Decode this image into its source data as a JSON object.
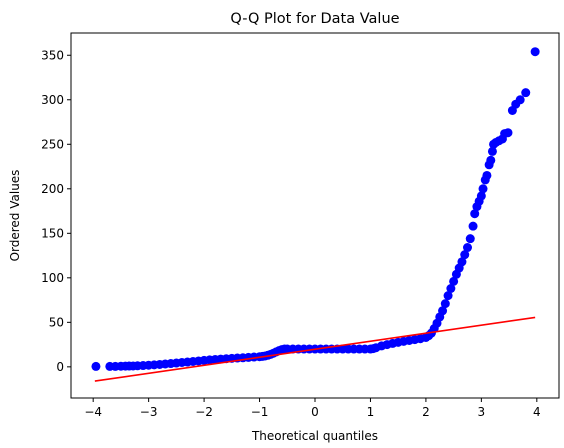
{
  "chart_data": {
    "type": "scatter",
    "title": "Q-Q Plot for Data Value",
    "xlabel": "Theoretical quantiles",
    "ylabel": "Ordered Values",
    "xlim": [
      -4.4,
      4.4
    ],
    "ylim": [
      -35,
      375
    ],
    "xticks": [
      -4,
      -3,
      -2,
      -1,
      0,
      1,
      2,
      3,
      4
    ],
    "xtick_labels": [
      "−4",
      "−3",
      "−2",
      "−1",
      "0",
      "1",
      "2",
      "3",
      "4"
    ],
    "yticks": [
      0,
      50,
      100,
      150,
      200,
      250,
      300,
      350
    ],
    "ytick_labels": [
      "0",
      "50",
      "100",
      "150",
      "200",
      "250",
      "300",
      "350"
    ],
    "grid": false,
    "series": [
      {
        "kind": "points",
        "color": "#0000ff",
        "points": [
          [
            -3.95,
            0.5
          ],
          [
            -3.7,
            0.5
          ],
          [
            -3.6,
            0.5
          ],
          [
            -3.5,
            0.7
          ],
          [
            -3.42,
            0.8
          ],
          [
            -3.35,
            0.9
          ],
          [
            -3.28,
            1.0
          ],
          [
            -3.2,
            1.2
          ],
          [
            -3.1,
            1.5
          ],
          [
            -3.0,
            1.8
          ],
          [
            -2.9,
            2.2
          ],
          [
            -2.8,
            2.7
          ],
          [
            -2.7,
            3.2
          ],
          [
            -2.6,
            3.7
          ],
          [
            -2.5,
            4.3
          ],
          [
            -2.4,
            4.9
          ],
          [
            -2.3,
            5.4
          ],
          [
            -2.2,
            6.0
          ],
          [
            -2.1,
            6.6
          ],
          [
            -2.0,
            7.2
          ],
          [
            -1.9,
            7.8
          ],
          [
            -1.8,
            8.3
          ],
          [
            -1.7,
            8.7
          ],
          [
            -1.6,
            9.1
          ],
          [
            -1.5,
            9.5
          ],
          [
            -1.4,
            9.9
          ],
          [
            -1.3,
            10.2
          ],
          [
            -1.2,
            10.6
          ],
          [
            -1.1,
            11.0
          ],
          [
            -1.0,
            11.4
          ],
          [
            -0.95,
            11.7
          ],
          [
            -0.9,
            12.2
          ],
          [
            -0.85,
            13.0
          ],
          [
            -0.8,
            14.0
          ],
          [
            -0.75,
            15.3
          ],
          [
            -0.7,
            16.8
          ],
          [
            -0.65,
            18.2
          ],
          [
            -0.6,
            19.3
          ],
          [
            -0.55,
            20.0
          ],
          [
            -0.5,
            20.0
          ],
          [
            -0.4,
            20.0
          ],
          [
            -0.3,
            20.0
          ],
          [
            -0.2,
            20.0
          ],
          [
            -0.1,
            20.0
          ],
          [
            0.0,
            20.0
          ],
          [
            0.1,
            20.0
          ],
          [
            0.2,
            20.0
          ],
          [
            0.3,
            20.0
          ],
          [
            0.4,
            20.0
          ],
          [
            0.5,
            20.0
          ],
          [
            0.6,
            20.0
          ],
          [
            0.7,
            20.0
          ],
          [
            0.8,
            20.0
          ],
          [
            0.9,
            20.0
          ],
          [
            1.0,
            20.0
          ],
          [
            1.05,
            20.5
          ],
          [
            1.1,
            21.5
          ],
          [
            1.2,
            23.5
          ],
          [
            1.3,
            25.0
          ],
          [
            1.4,
            26.3
          ],
          [
            1.5,
            27.5
          ],
          [
            1.6,
            28.6
          ],
          [
            1.7,
            29.6
          ],
          [
            1.8,
            30.6
          ],
          [
            1.9,
            31.6
          ],
          [
            2.0,
            33.0
          ],
          [
            2.05,
            35.0
          ],
          [
            2.1,
            38.0
          ],
          [
            2.15,
            43.0
          ],
          [
            2.2,
            49.0
          ],
          [
            2.25,
            56.0
          ],
          [
            2.3,
            63.0
          ],
          [
            2.35,
            71.0
          ],
          [
            2.4,
            80.0
          ],
          [
            2.45,
            88.0
          ],
          [
            2.5,
            96.0
          ],
          [
            2.55,
            104.0
          ],
          [
            2.6,
            111.0
          ],
          [
            2.65,
            118.0
          ],
          [
            2.7,
            126.0
          ],
          [
            2.75,
            134.0
          ],
          [
            2.8,
            144.0
          ],
          [
            2.85,
            158.0
          ],
          [
            2.88,
            172.0
          ],
          [
            2.92,
            180.0
          ],
          [
            2.96,
            186.0
          ],
          [
            3.0,
            192.0
          ],
          [
            3.03,
            200.0
          ],
          [
            3.07,
            210.0
          ],
          [
            3.1,
            215.0
          ],
          [
            3.14,
            227.0
          ],
          [
            3.17,
            232.0
          ],
          [
            3.2,
            242.0
          ],
          [
            3.22,
            250.0
          ],
          [
            3.26,
            252.0
          ],
          [
            3.32,
            254.0
          ],
          [
            3.38,
            256.0
          ],
          [
            3.42,
            262.0
          ],
          [
            3.48,
            263.0
          ],
          [
            3.56,
            288.0
          ],
          [
            3.62,
            295.0
          ],
          [
            3.7,
            300.0
          ],
          [
            3.8,
            308.0
          ],
          [
            3.97,
            354.0
          ]
        ]
      },
      {
        "kind": "line",
        "color": "#ff0000",
        "points": [
          [
            -3.97,
            -16.0
          ],
          [
            3.97,
            55.5
          ]
        ]
      }
    ]
  }
}
